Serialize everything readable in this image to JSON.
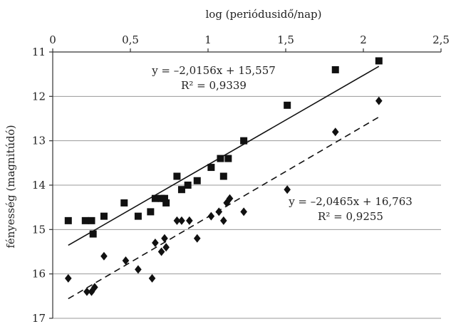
{
  "chart_data": {
    "type": "scatter",
    "xlabel": "log (periódusidő/nap)",
    "ylabel": "fényesség (magnitúdó)",
    "xlim": [
      0,
      2.5
    ],
    "ylim": [
      11,
      17
    ],
    "y_reversed": true,
    "x_axis_position": "top",
    "x_ticks": [
      "0",
      "0,5",
      "1",
      "1,5",
      "2",
      "2,5"
    ],
    "y_ticks": [
      "11",
      "12",
      "13",
      "14",
      "15",
      "16",
      "17"
    ],
    "grid": "horizontal",
    "series": [
      {
        "marker": "square",
        "points": [
          [
            0.1,
            14.8
          ],
          [
            0.21,
            14.8
          ],
          [
            0.25,
            14.8
          ],
          [
            0.26,
            15.1
          ],
          [
            0.33,
            14.7
          ],
          [
            0.46,
            14.4
          ],
          [
            0.55,
            14.7
          ],
          [
            0.63,
            14.6
          ],
          [
            0.66,
            14.3
          ],
          [
            0.7,
            14.3
          ],
          [
            0.72,
            14.3
          ],
          [
            0.73,
            14.4
          ],
          [
            0.8,
            13.8
          ],
          [
            0.83,
            14.1
          ],
          [
            0.87,
            14.0
          ],
          [
            0.93,
            13.9
          ],
          [
            1.02,
            13.6
          ],
          [
            1.08,
            13.4
          ],
          [
            1.1,
            13.8
          ],
          [
            1.13,
            13.4
          ],
          [
            1.23,
            13.0
          ],
          [
            1.51,
            12.2
          ],
          [
            1.82,
            11.4
          ],
          [
            2.1,
            11.2
          ]
        ],
        "fit": {
          "slope": -2.0156,
          "intercept": 15.557,
          "x_range": [
            0.1,
            2.1
          ],
          "style": "solid"
        },
        "equation": "y = –2,0156x + 15,557",
        "r2": "R² = 0,9339"
      },
      {
        "marker": "diamond",
        "points": [
          [
            0.1,
            16.1
          ],
          [
            0.22,
            16.4
          ],
          [
            0.25,
            16.4
          ],
          [
            0.27,
            16.3
          ],
          [
            0.33,
            15.6
          ],
          [
            0.47,
            15.7
          ],
          [
            0.55,
            15.9
          ],
          [
            0.64,
            16.1
          ],
          [
            0.66,
            15.3
          ],
          [
            0.7,
            15.5
          ],
          [
            0.72,
            15.2
          ],
          [
            0.73,
            15.4
          ],
          [
            0.8,
            14.8
          ],
          [
            0.83,
            14.8
          ],
          [
            0.88,
            14.8
          ],
          [
            0.93,
            15.2
          ],
          [
            1.02,
            14.7
          ],
          [
            1.07,
            14.6
          ],
          [
            1.1,
            14.8
          ],
          [
            1.12,
            14.4
          ],
          [
            1.14,
            14.3
          ],
          [
            1.23,
            14.6
          ],
          [
            1.51,
            14.1
          ],
          [
            1.82,
            12.8
          ],
          [
            2.1,
            12.1
          ]
        ],
        "fit": {
          "slope": -2.0465,
          "intercept": 16.763,
          "x_range": [
            0.1,
            2.1
          ],
          "style": "dashed"
        },
        "equation": "y = –2,0465x + 16,763",
        "r2": "R² = 0,9255"
      }
    ]
  }
}
